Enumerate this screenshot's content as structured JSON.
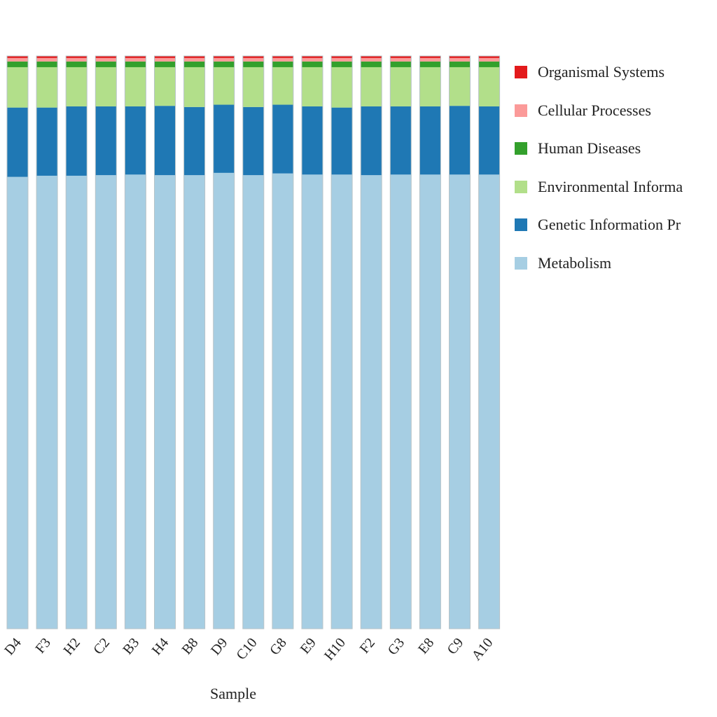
{
  "chart_data": {
    "type": "bar",
    "stacked": true,
    "title": "",
    "xlabel": "Sample",
    "ylabel": "",
    "ylim": [
      0,
      100
    ],
    "grid": false,
    "legend_position": "right",
    "categories": [
      "D4",
      "F3",
      "H2",
      "C2",
      "B3",
      "H4",
      "B8",
      "D9",
      "C10",
      "G8",
      "E9",
      "H10",
      "F2",
      "G3",
      "E8",
      "C9",
      "A10"
    ],
    "series": [
      {
        "name": "Metabolism",
        "color": "#a6cee3",
        "values": [
          78.9,
          79.1,
          79.1,
          79.2,
          79.3,
          79.2,
          79.2,
          79.6,
          79.2,
          79.5,
          79.3,
          79.3,
          79.2,
          79.3,
          79.3,
          79.3,
          79.3
        ]
      },
      {
        "name": "Genetic Information Processing",
        "color": "#1f78b4",
        "values": [
          12.1,
          11.9,
          12.1,
          12.0,
          11.9,
          12.1,
          11.9,
          11.9,
          11.9,
          12.0,
          11.9,
          11.7,
          12.0,
          11.9,
          11.9,
          12.0,
          11.9
        ]
      },
      {
        "name": "Environmental Information Processing",
        "color": "#b2df8a",
        "values": [
          7.05,
          7.05,
          6.85,
          6.85,
          6.85,
          6.75,
          6.95,
          6.55,
          6.95,
          6.55,
          6.85,
          7.05,
          6.85,
          6.85,
          6.85,
          6.75,
          6.85
        ]
      },
      {
        "name": "Human Diseases",
        "color": "#33a02c",
        "values": [
          1.0,
          1.0,
          1.0,
          1.0,
          1.0,
          1.0,
          1.0,
          1.0,
          1.0,
          1.0,
          1.0,
          1.0,
          1.0,
          1.0,
          1.0,
          1.0,
          1.0
        ]
      },
      {
        "name": "Cellular Processes",
        "color": "#fb9a99",
        "values": [
          0.6,
          0.6,
          0.6,
          0.6,
          0.6,
          0.6,
          0.6,
          0.6,
          0.6,
          0.6,
          0.6,
          0.6,
          0.6,
          0.6,
          0.6,
          0.6,
          0.6
        ]
      },
      {
        "name": "Organismal Systems",
        "color": "#e31a1c",
        "values": [
          0.35,
          0.35,
          0.35,
          0.35,
          0.35,
          0.35,
          0.35,
          0.35,
          0.35,
          0.35,
          0.35,
          0.35,
          0.35,
          0.35,
          0.35,
          0.35,
          0.35
        ]
      }
    ],
    "legend": {
      "entries": [
        "Organismal Systems",
        "Cellular Processes",
        "Human Diseases",
        "Environmental Informa",
        "Genetic Information Pr",
        "Metabolism"
      ],
      "colors": [
        "#e31a1c",
        "#fb9a99",
        "#33a02c",
        "#b2df8a",
        "#1f78b4",
        "#a6cee3"
      ]
    }
  }
}
